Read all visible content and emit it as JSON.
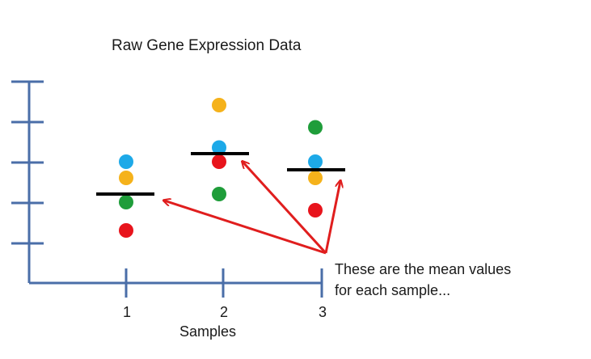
{
  "title": "Raw Gene Expression Data",
  "xlabel": "Samples",
  "annotation": {
    "line1": "These are the mean values",
    "line2": "for each sample..."
  },
  "colors": {
    "axis": "#4a6ea8",
    "mean_bar": "#000000",
    "arrow": "#e01e1e",
    "blue": "#1da9e8",
    "orange": "#f5b21b",
    "green": "#1f9d3a",
    "red": "#e8141c"
  },
  "chart_data": {
    "type": "scatter",
    "title": "Raw Gene Expression Data",
    "xlabel": "Samples",
    "ylabel": "",
    "categories": [
      "1",
      "2",
      "3"
    ],
    "y_ticks_count": 5,
    "series": [
      {
        "color": "blue",
        "values": [
          3.0,
          3.35,
          3.0
        ]
      },
      {
        "color": "orange",
        "values": [
          2.6,
          4.4,
          2.6
        ]
      },
      {
        "color": "green",
        "values": [
          2.0,
          2.2,
          3.85
        ]
      },
      {
        "color": "red",
        "values": [
          1.3,
          3.0,
          1.8
        ]
      }
    ],
    "means": [
      2.2,
      3.2,
      2.8
    ]
  }
}
